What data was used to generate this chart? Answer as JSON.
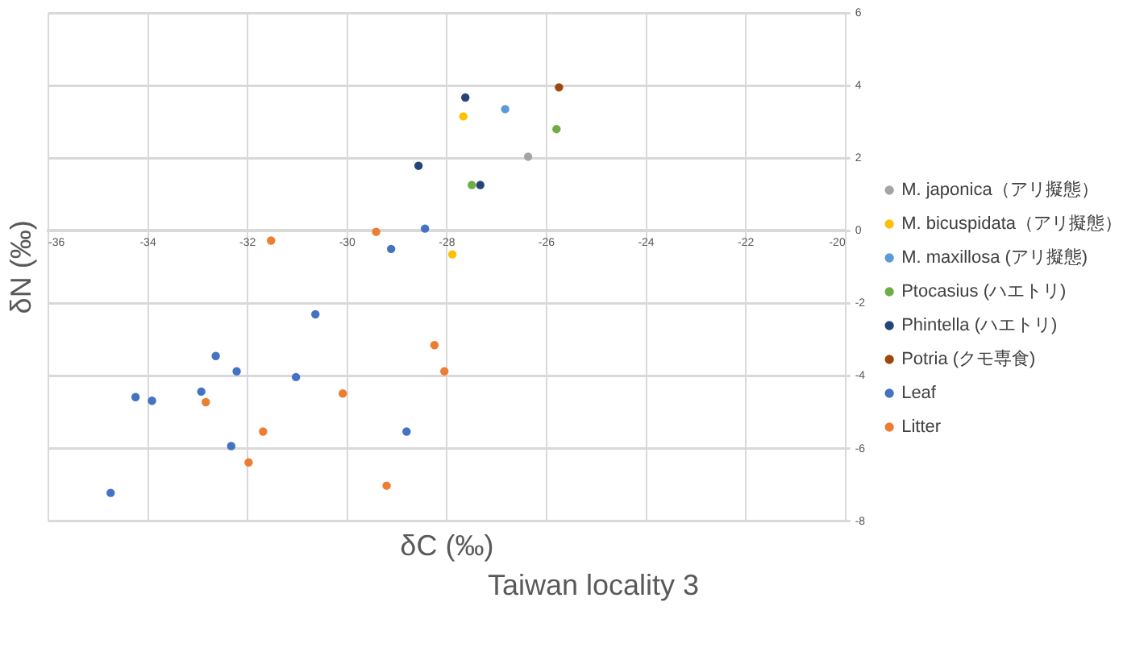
{
  "chart_data": {
    "type": "scatter",
    "title": "Taiwan locality 3",
    "xlabel": "δC (‰)",
    "ylabel": "δN (‰)",
    "xlim": [
      -36,
      -20
    ],
    "xticks": [
      -36,
      -34,
      -32,
      -30,
      -28,
      -26,
      -24,
      -22,
      -20
    ],
    "ylim": [
      -8,
      6
    ],
    "yticks": [
      -8,
      -6,
      -4,
      -2,
      0,
      2,
      4,
      6
    ],
    "grid": true,
    "legend": "right",
    "marker": "circle",
    "series": [
      {
        "name": "M. japonica（アリ擬態）",
        "color": "#a5a5a5",
        "x": [
          -26.37
        ],
        "values": [
          2.04
        ]
      },
      {
        "name": "M. bicuspidata（アリ擬態）",
        "color": "#ffc000",
        "x": [
          -27.67,
          -27.89
        ],
        "values": [
          3.15,
          -0.65
        ]
      },
      {
        "name": "M. maxillosa (アリ擬態)",
        "color": "#5b9bd5",
        "x": [
          -26.83
        ],
        "values": [
          3.35
        ]
      },
      {
        "name": "Ptocasius (ハエトリ)",
        "color": "#70ad47",
        "x": [
          -25.8,
          -27.5
        ],
        "values": [
          2.8,
          1.26
        ]
      },
      {
        "name": "Phintella (ハエトリ)",
        "color": "#264478",
        "x": [
          -27.63,
          -28.57,
          -27.33
        ],
        "values": [
          3.67,
          1.79,
          1.26
        ]
      },
      {
        "name": "Potria (クモ専食)",
        "color": "#9e480e",
        "x": [
          -25.75
        ],
        "values": [
          3.95
        ]
      },
      {
        "name": "Leaf",
        "color": "#4472c4",
        "x": [
          -28.44,
          -29.12,
          -30.64,
          -32.64,
          -32.22,
          -31.03,
          -34.25,
          -33.92,
          -32.93,
          -32.33,
          -34.75,
          -28.81
        ],
        "values": [
          0.06,
          -0.5,
          -2.3,
          -3.45,
          -3.87,
          -4.03,
          -4.58,
          -4.68,
          -4.43,
          -5.93,
          -7.22,
          -5.53
        ]
      },
      {
        "name": "Litter",
        "color": "#ed7d31",
        "x": [
          -31.53,
          -29.42,
          -32.84,
          -30.09,
          -31.69,
          -31.98,
          -29.21,
          -28.25,
          -28.05
        ],
        "values": [
          -0.27,
          -0.03,
          -4.72,
          -4.48,
          -5.53,
          -6.38,
          -7.02,
          -3.15,
          -3.87
        ]
      }
    ]
  }
}
